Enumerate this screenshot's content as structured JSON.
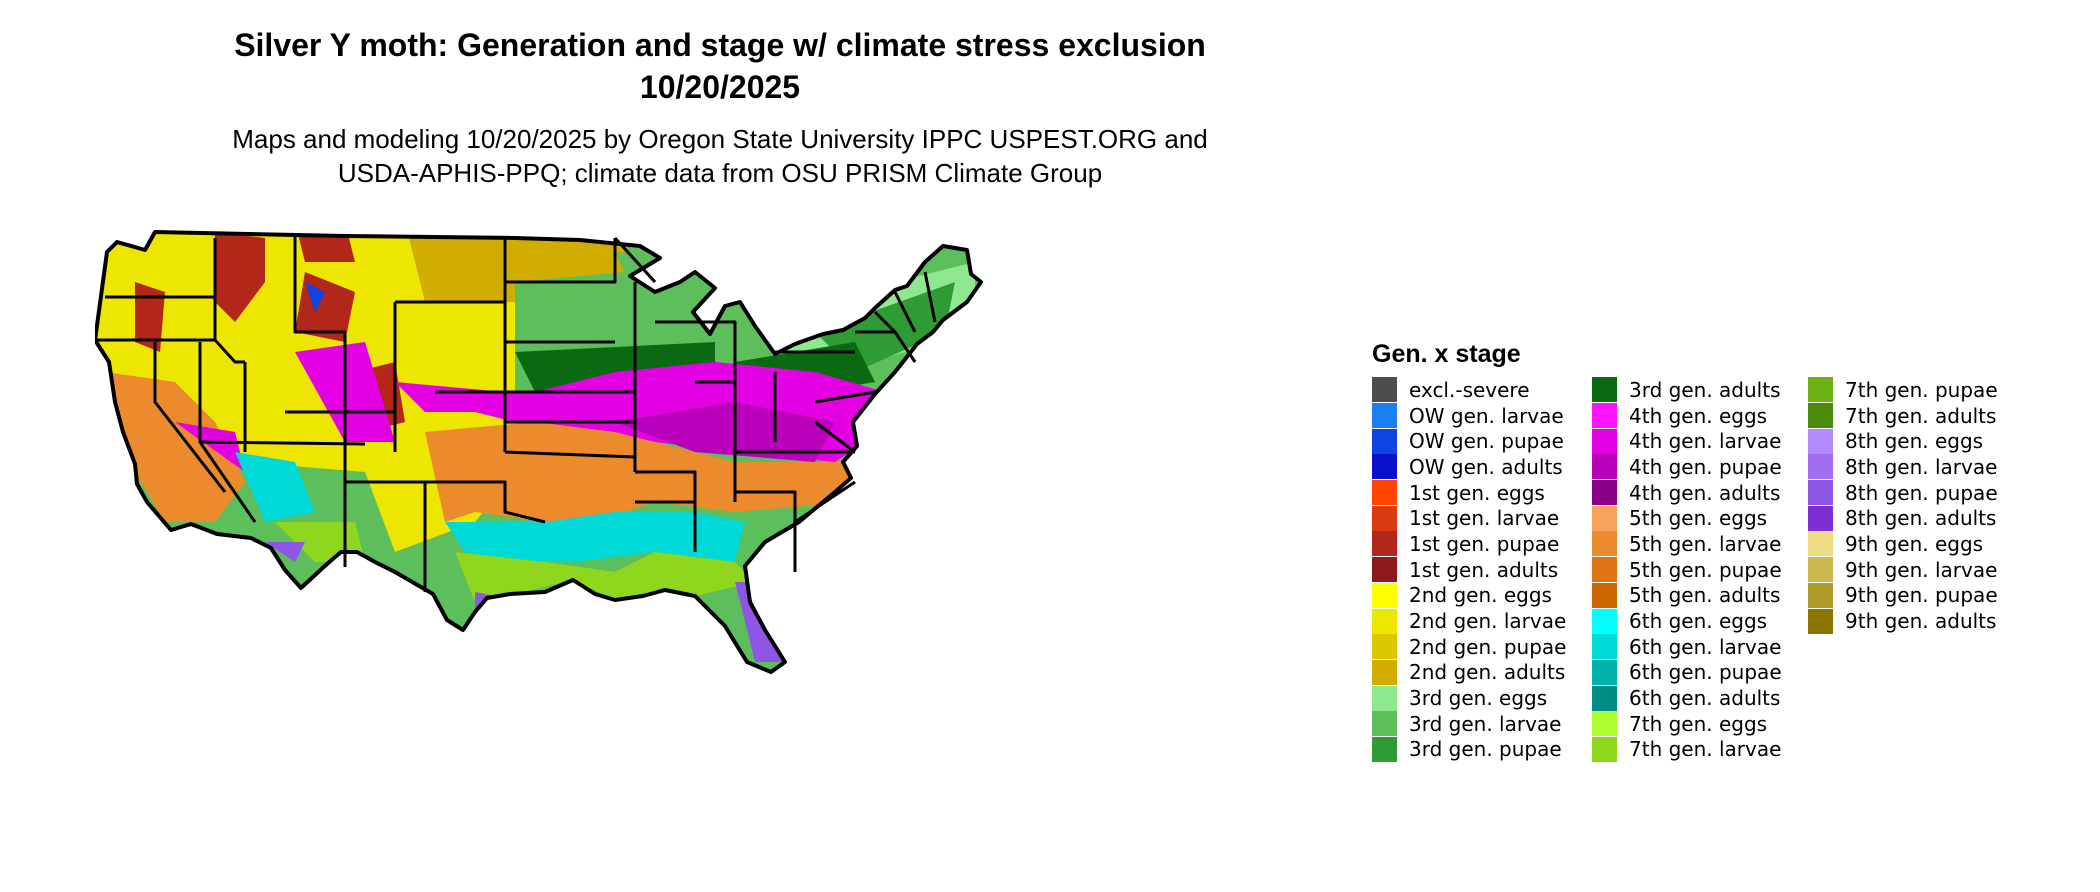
{
  "title_line1": "Silver Y moth: Generation and stage w/ climate stress exclusion",
  "title_line2": "10/20/2025",
  "subtitle_line1": "Maps and modeling 10/20/2025 by Oregon State University IPPC USPEST.ORG and",
  "subtitle_line2": "USDA-APHIS-PPQ; climate data from OSU PRISM Climate Group",
  "legend": {
    "title": "Gen. x stage",
    "items": [
      {
        "label": "excl.-severe",
        "color": "#4d4d4d"
      },
      {
        "label": "OW gen. larvae",
        "color": "#1a7ff0"
      },
      {
        "label": "OW gen. pupae",
        "color": "#0d45e0"
      },
      {
        "label": "OW gen. adults",
        "color": "#0a10cc"
      },
      {
        "label": "1st gen. eggs",
        "color": "#ff4400"
      },
      {
        "label": "1st gen. larvae",
        "color": "#d93a12"
      },
      {
        "label": "1st gen. pupae",
        "color": "#b3261a"
      },
      {
        "label": "1st gen. adults",
        "color": "#8c1a1a"
      },
      {
        "label": "2nd gen. eggs",
        "color": "#ffff00"
      },
      {
        "label": "2nd gen. larvae",
        "color": "#ede600"
      },
      {
        "label": "2nd gen. pupae",
        "color": "#ddc800"
      },
      {
        "label": "2nd gen. adults",
        "color": "#d1ad00"
      },
      {
        "label": "3rd gen. eggs",
        "color": "#8fe88f"
      },
      {
        "label": "3rd gen. larvae",
        "color": "#5cbf5c"
      },
      {
        "label": "3rd gen. pupae",
        "color": "#2e9b34"
      },
      {
        "label": "3rd gen. adults",
        "color": "#0a6a12"
      },
      {
        "label": "4th gen. eggs",
        "color": "#ff14ff"
      },
      {
        "label": "4th gen. larvae",
        "color": "#e300e3"
      },
      {
        "label": "4th gen. pupae",
        "color": "#bb00bb"
      },
      {
        "label": "4th gen. adults",
        "color": "#8b008b"
      },
      {
        "label": "5th gen. eggs",
        "color": "#f5a25a"
      },
      {
        "label": "5th gen. larvae",
        "color": "#ec8a2e"
      },
      {
        "label": "5th gen. pupae",
        "color": "#df7512"
      },
      {
        "label": "5th gen. adults",
        "color": "#cd6600"
      },
      {
        "label": "6th gen. eggs",
        "color": "#00ffff"
      },
      {
        "label": "6th gen. larvae",
        "color": "#00d9d6"
      },
      {
        "label": "6th gen. pupae",
        "color": "#00b2aa"
      },
      {
        "label": "6th gen. adults",
        "color": "#008b84"
      },
      {
        "label": "7th gen. eggs",
        "color": "#adff2f"
      },
      {
        "label": "7th gen. larvae",
        "color": "#8fd61f"
      },
      {
        "label": "7th gen. pupae",
        "color": "#6db214"
      },
      {
        "label": "7th gen. adults",
        "color": "#4a8c0a"
      },
      {
        "label": "8th gen. eggs",
        "color": "#b28cff"
      },
      {
        "label": "8th gen. larvae",
        "color": "#a06eef"
      },
      {
        "label": "8th gen. pupae",
        "color": "#8f55e3"
      },
      {
        "label": "8th gen. adults",
        "color": "#7d2ed1"
      },
      {
        "label": "9th gen. eggs",
        "color": "#eedc82"
      },
      {
        "label": "9th gen. larvae",
        "color": "#cdb64e"
      },
      {
        "label": "9th gen. pupae",
        "color": "#b09a2a"
      },
      {
        "label": "9th gen. adults",
        "color": "#8b7500"
      }
    ]
  }
}
